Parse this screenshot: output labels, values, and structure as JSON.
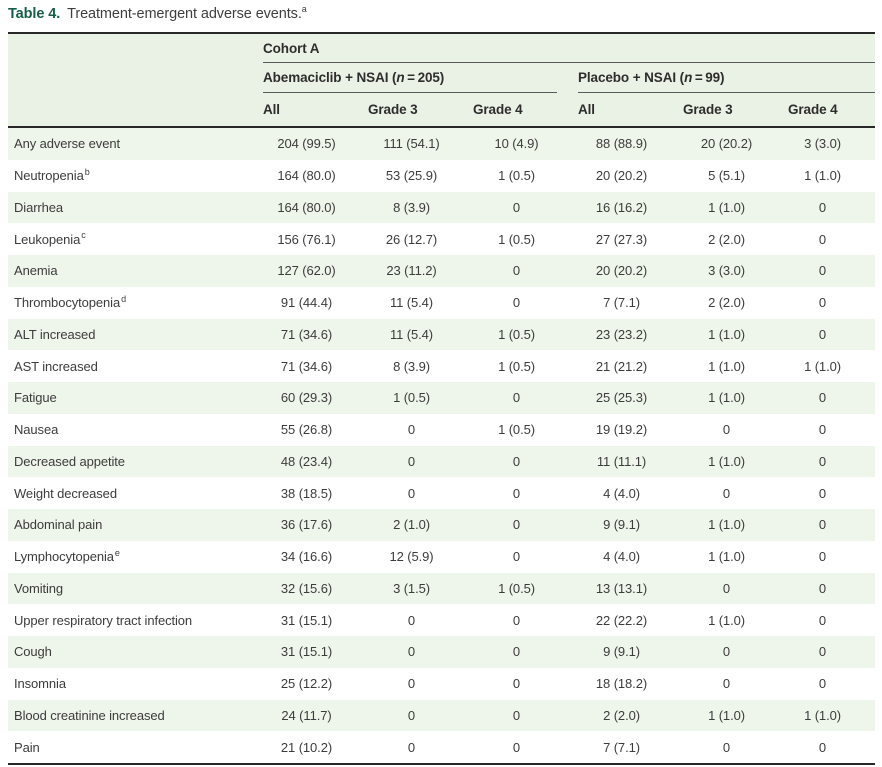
{
  "title": {
    "label": "Table 4.",
    "text": "Treatment-emergent adverse events.",
    "sup": "a"
  },
  "table": {
    "cohort_header": "Cohort A",
    "groups": [
      {
        "pre": "Abemaciclib + NSAI (",
        "n": "n",
        "post": " = 205)"
      },
      {
        "pre": "Placebo + NSAI (",
        "n": "n",
        "post": " = 99)"
      }
    ],
    "columns": [
      "All",
      "Grade 3",
      "Grade 4",
      "All",
      "Grade 3",
      "Grade 4"
    ],
    "rows": [
      {
        "name": "Any adverse event",
        "sup": "",
        "values": [
          "204 (99.5)",
          "111 (54.1)",
          "10 (4.9)",
          "88 (88.9)",
          "20 (20.2)",
          "3 (3.0)"
        ]
      },
      {
        "name": "Neutropenia",
        "sup": "b",
        "values": [
          "164 (80.0)",
          "53 (25.9)",
          "1 (0.5)",
          "20 (20.2)",
          "5 (5.1)",
          "1 (1.0)"
        ]
      },
      {
        "name": "Diarrhea",
        "sup": "",
        "values": [
          "164 (80.0)",
          "8 (3.9)",
          "0",
          "16 (16.2)",
          "1 (1.0)",
          "0"
        ]
      },
      {
        "name": "Leukopenia",
        "sup": "c",
        "values": [
          "156 (76.1)",
          "26 (12.7)",
          "1 (0.5)",
          "27 (27.3)",
          "2 (2.0)",
          "0"
        ]
      },
      {
        "name": "Anemia",
        "sup": "",
        "values": [
          "127 (62.0)",
          "23 (11.2)",
          "0",
          "20 (20.2)",
          "3 (3.0)",
          "0"
        ]
      },
      {
        "name": "Thrombocytopenia",
        "sup": "d",
        "values": [
          "91 (44.4)",
          "11 (5.4)",
          "0",
          "7 (7.1)",
          "2 (2.0)",
          "0"
        ]
      },
      {
        "name": "ALT increased",
        "sup": "",
        "values": [
          "71 (34.6)",
          "11 (5.4)",
          "1 (0.5)",
          "23 (23.2)",
          "1 (1.0)",
          "0"
        ]
      },
      {
        "name": "AST increased",
        "sup": "",
        "values": [
          "71 (34.6)",
          "8 (3.9)",
          "1 (0.5)",
          "21 (21.2)",
          "1 (1.0)",
          "1 (1.0)"
        ]
      },
      {
        "name": "Fatigue",
        "sup": "",
        "values": [
          "60 (29.3)",
          "1 (0.5)",
          "0",
          "25 (25.3)",
          "1 (1.0)",
          "0"
        ]
      },
      {
        "name": "Nausea",
        "sup": "",
        "values": [
          "55 (26.8)",
          "0",
          "1 (0.5)",
          "19 (19.2)",
          "0",
          "0"
        ]
      },
      {
        "name": "Decreased appetite",
        "sup": "",
        "values": [
          "48 (23.4)",
          "0",
          "0",
          "11 (11.1)",
          "1 (1.0)",
          "0"
        ]
      },
      {
        "name": "Weight decreased",
        "sup": "",
        "values": [
          "38 (18.5)",
          "0",
          "0",
          "4 (4.0)",
          "0",
          "0"
        ]
      },
      {
        "name": "Abdominal pain",
        "sup": "",
        "values": [
          "36 (17.6)",
          "2 (1.0)",
          "0",
          "9 (9.1)",
          "1 (1.0)",
          "0"
        ]
      },
      {
        "name": "Lymphocytopenia",
        "sup": "e",
        "values": [
          "34 (16.6)",
          "12 (5.9)",
          "0",
          "4 (4.0)",
          "1 (1.0)",
          "0"
        ]
      },
      {
        "name": "Vomiting",
        "sup": "",
        "values": [
          "32 (15.6)",
          "3 (1.5)",
          "1 (0.5)",
          "13 (13.1)",
          "0",
          "0"
        ]
      },
      {
        "name": "Upper respiratory tract infection",
        "sup": "",
        "values": [
          "31 (15.1)",
          "0",
          "0",
          "22 (22.2)",
          "1 (1.0)",
          "0"
        ]
      },
      {
        "name": "Cough",
        "sup": "",
        "values": [
          "31 (15.1)",
          "0",
          "0",
          "9 (9.1)",
          "0",
          "0"
        ]
      },
      {
        "name": "Insomnia",
        "sup": "",
        "values": [
          "25 (12.2)",
          "0",
          "0",
          "18 (18.2)",
          "0",
          "0"
        ]
      },
      {
        "name": "Blood creatinine increased",
        "sup": "",
        "values": [
          "24 (11.7)",
          "0",
          "0",
          "2 (2.0)",
          "1 (1.0)",
          "1 (1.0)"
        ]
      },
      {
        "name": "Pain",
        "sup": "",
        "values": [
          "21 (10.2)",
          "0",
          "0",
          "7 (7.1)",
          "0",
          "0"
        ]
      }
    ]
  }
}
